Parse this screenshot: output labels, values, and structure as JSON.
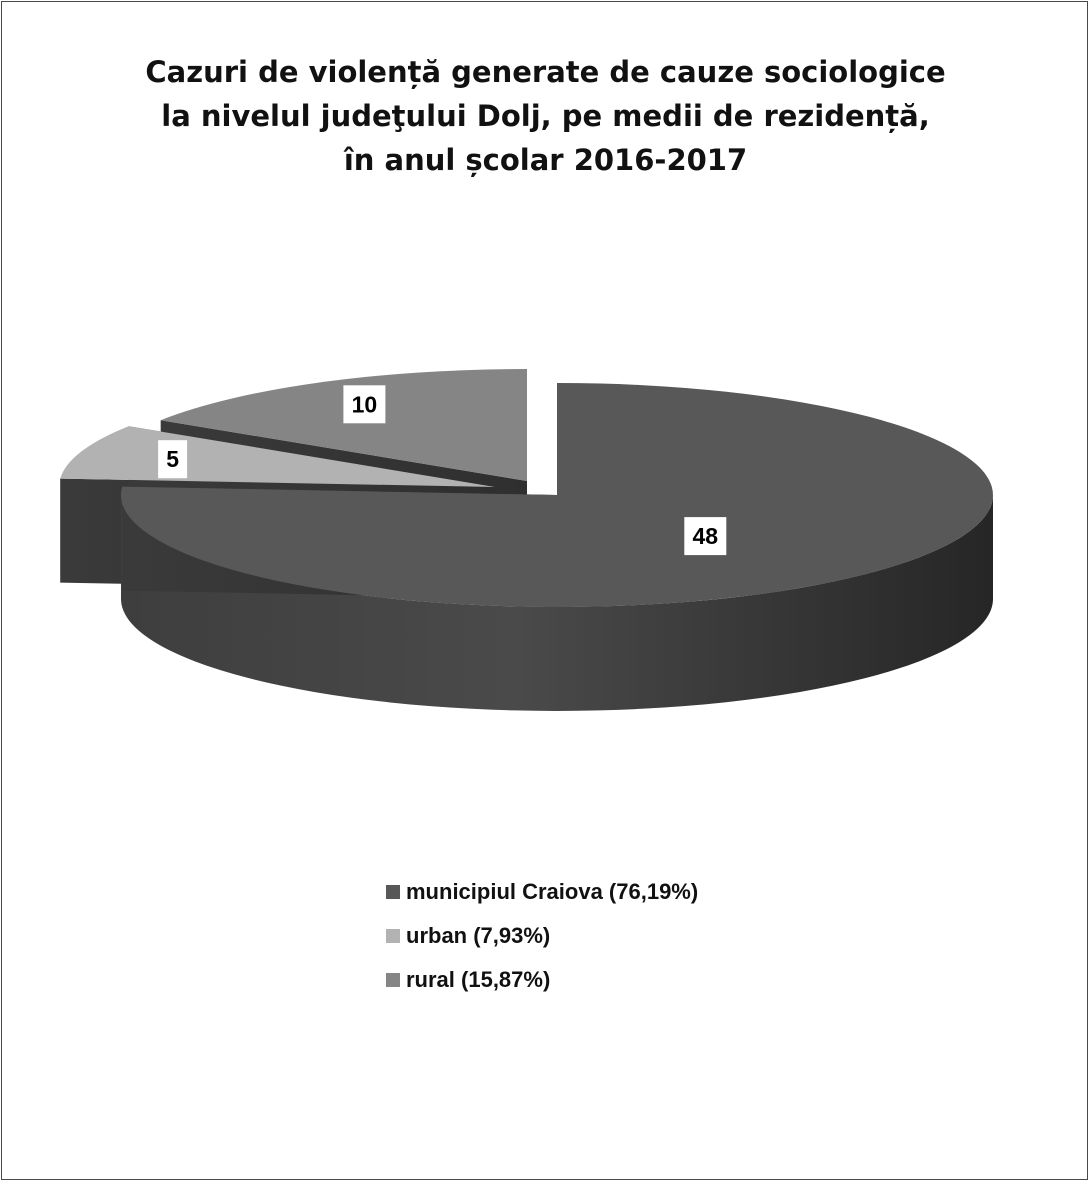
{
  "title_lines": [
    "Cazuri de violență generate de cauze sociologice",
    "la nivelul judeţului Dolj, pe medii de rezidență,",
    "în anul școlar 2016-2017"
  ],
  "chart_data": {
    "type": "pie",
    "categories": [
      "municipiul Craiova (76,19%)",
      "urban (7,93%)",
      "rural (15,87%)"
    ],
    "values": [
      48,
      5,
      10
    ],
    "data_labels": [
      "48",
      "5",
      "10"
    ],
    "colors": [
      "#585858",
      "#b2b2b2",
      "#858585"
    ],
    "legend_position": "bottom",
    "style": "3d-exploded"
  }
}
